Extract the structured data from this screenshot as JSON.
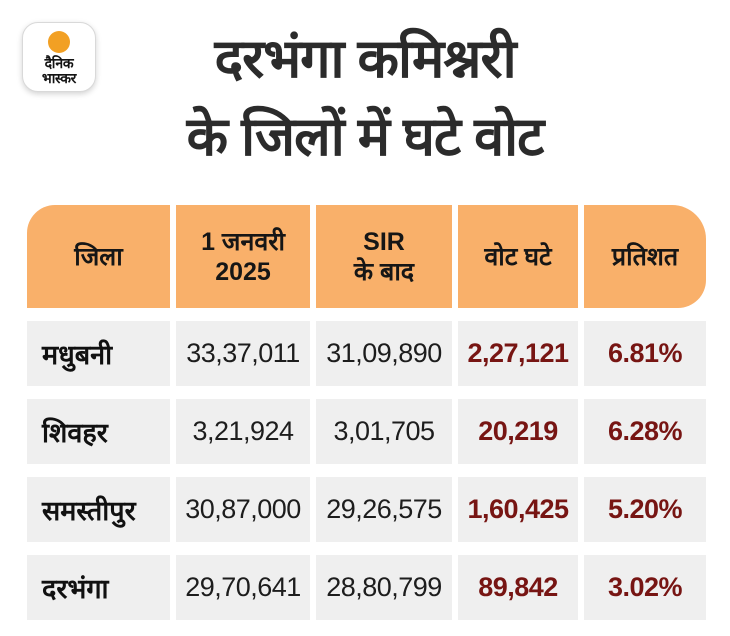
{
  "brand": {
    "line1": "दैनिक",
    "line2": "भास्कर",
    "sun_color": "#F2A024"
  },
  "title": {
    "line1": "दरभंगा कमिश्नरी",
    "line2": "के जिलों में घटे वोट"
  },
  "table": {
    "headers": {
      "district": "जिला",
      "before": "1 जनवरी\n2025",
      "after": "SIR\nके बाद",
      "decrease": "वोट घटे",
      "percent": "प्रतिशत"
    },
    "rows": [
      {
        "district": "मधुबनी",
        "before": "33,37,011",
        "after": "31,09,890",
        "decrease": "2,27,121",
        "percent": "6.81%"
      },
      {
        "district": "शिवहर",
        "before": "3,21,924",
        "after": "3,01,705",
        "decrease": "20,219",
        "percent": "6.28%"
      },
      {
        "district": "समस्तीपुर",
        "before": "30,87,000",
        "after": "29,26,575",
        "decrease": "1,60,425",
        "percent": "5.20%"
      },
      {
        "district": "दरभंगा",
        "before": "29,70,641",
        "after": "28,80,799",
        "decrease": "89,842",
        "percent": "3.02%"
      }
    ]
  },
  "colors": {
    "header_bg": "#F9B06A",
    "row_bg": "#EFEFEF",
    "accent_maroon": "#771513",
    "text_black": "#1D1D1D",
    "background": "#FFFFFF"
  },
  "chart_data": {
    "type": "table",
    "title": "दरभंगा कमिश्नरी के जिलों में घटे वोट",
    "columns": [
      "जिला",
      "1 जनवरी 2025",
      "SIR के बाद",
      "वोट घटे",
      "प्रतिशत"
    ],
    "rows": [
      [
        "मधुबनी",
        "33,37,011",
        "31,09,890",
        "2,27,121",
        "6.81%"
      ],
      [
        "शिवहर",
        "3,21,924",
        "3,01,705",
        "20,219",
        "6.28%"
      ],
      [
        "समस्तीपुर",
        "30,87,000",
        "29,26,575",
        "1,60,425",
        "5.20%"
      ],
      [
        "दरभंगा",
        "29,70,641",
        "28,80,799",
        "89,842",
        "3.02%"
      ]
    ],
    "rows_numeric": [
      {
        "district": "Madhubani",
        "before": 3337011,
        "after": 3109890,
        "decrease": 227121,
        "percent": 6.81
      },
      {
        "district": "Sheohar",
        "before": 321924,
        "after": 301705,
        "decrease": 20219,
        "percent": 6.28
      },
      {
        "district": "Samastipur",
        "before": 3087000,
        "after": 2926575,
        "decrease": 160425,
        "percent": 5.2
      },
      {
        "district": "Darbhanga",
        "before": 2970641,
        "after": 2880799,
        "decrease": 89842,
        "percent": 3.02
      }
    ]
  }
}
